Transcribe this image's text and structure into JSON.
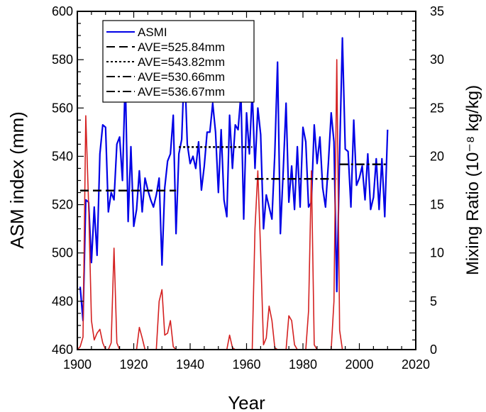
{
  "chart_data": {
    "type": "line",
    "xlabel": "Year",
    "ylabel_left": "ASM index (mm)",
    "ylabel_right": "Mixing Ratio (10⁻⁸ kg/kg)",
    "xlim": [
      1900,
      2020
    ],
    "ylim_left": [
      460,
      600
    ],
    "ylim_right": [
      0,
      35
    ],
    "x_ticks": [
      1900,
      1920,
      1940,
      1960,
      1980,
      2000,
      2020
    ],
    "y_left_ticks": [
      460,
      480,
      500,
      520,
      540,
      560,
      580,
      600
    ],
    "y_right_ticks": [
      0,
      5,
      10,
      15,
      20,
      25,
      30,
      35
    ],
    "grid": false,
    "legend_placement": "top-left",
    "legend": [
      {
        "label": "ASMI",
        "style": "solid",
        "color": "#0000e6"
      },
      {
        "label": "AVE=525.84mm",
        "style": "dashed",
        "color": "#000000"
      },
      {
        "label": "AVE=543.82mm",
        "style": "dotted",
        "color": "#000000"
      },
      {
        "label": "AVE=530.66mm",
        "style": "dashdot",
        "color": "#000000"
      },
      {
        "label": "AVE=536.67mm",
        "style": "dashdot",
        "color": "#000000"
      }
    ],
    "series": [
      {
        "name": "ASMI",
        "axis": "left",
        "color": "#0000e6",
        "x": [
          1901,
          1902,
          1903,
          1904,
          1905,
          1906,
          1907,
          1908,
          1909,
          1910,
          1911,
          1912,
          1913,
          1914,
          1915,
          1916,
          1917,
          1918,
          1919,
          1920,
          1921,
          1922,
          1923,
          1924,
          1925,
          1926,
          1927,
          1928,
          1929,
          1930,
          1931,
          1932,
          1933,
          1934,
          1935,
          1936,
          1937,
          1938,
          1939,
          1940,
          1941,
          1942,
          1943,
          1944,
          1945,
          1946,
          1947,
          1948,
          1949,
          1950,
          1951,
          1952,
          1953,
          1954,
          1955,
          1956,
          1957,
          1958,
          1959,
          1960,
          1961,
          1962,
          1963,
          1964,
          1965,
          1966,
          1967,
          1968,
          1969,
          1970,
          1971,
          1972,
          1973,
          1974,
          1975,
          1976,
          1977,
          1978,
          1979,
          1980,
          1981,
          1982,
          1983,
          1984,
          1985,
          1986,
          1987,
          1988,
          1989,
          1990,
          1991,
          1992,
          1993,
          1994,
          1995,
          1996,
          1997,
          1998,
          1999,
          2000,
          2001,
          2002,
          2003,
          2004,
          2005,
          2006,
          2007,
          2008,
          2009,
          2010
        ],
        "values": [
          486,
          472,
          522,
          521,
          496,
          519,
          499,
          541,
          553,
          552,
          517,
          525,
          522,
          545,
          548,
          530,
          573,
          513,
          544,
          511,
          518,
          534,
          517,
          531,
          526,
          522,
          519,
          524,
          531,
          495,
          527,
          538,
          541,
          557,
          508,
          541,
          547,
          579,
          545,
          537,
          540,
          535,
          546,
          526,
          536,
          550,
          550,
          562,
          550,
          525,
          551,
          522,
          515,
          557,
          535,
          553,
          551,
          566,
          514,
          558,
          541,
          567,
          535,
          560,
          549,
          510,
          524,
          519,
          514,
          541,
          579,
          508,
          534,
          562,
          521,
          536,
          518,
          544,
          519,
          552,
          546,
          519,
          521,
          553,
          537,
          548,
          527,
          519,
          537,
          558,
          546,
          484,
          541,
          589,
          543,
          542,
          519,
          555,
          528,
          531,
          536,
          522,
          541,
          518,
          523,
          539,
          518,
          539,
          515,
          551
        ]
      },
      {
        "name": "",
        "axis": "right",
        "color": "#d42020",
        "x": [
          1900,
          1901,
          1902,
          1903,
          1904,
          1905,
          1906,
          1907,
          1908,
          1909,
          1910,
          1911,
          1912,
          1913,
          1914,
          1915,
          1916,
          1917,
          1918,
          1919,
          1920,
          1921,
          1922,
          1923,
          1924,
          1925,
          1926,
          1927,
          1928,
          1929,
          1930,
          1931,
          1932,
          1933,
          1934,
          1935,
          1936,
          1937,
          1938,
          1939,
          1940,
          1941,
          1942,
          1943,
          1944,
          1945,
          1946,
          1947,
          1948,
          1949,
          1950,
          1951,
          1952,
          1953,
          1954,
          1955,
          1956,
          1957,
          1958,
          1959,
          1960,
          1961,
          1962,
          1963,
          1964,
          1965,
          1966,
          1967,
          1968,
          1969,
          1970,
          1971,
          1972,
          1973,
          1974,
          1975,
          1976,
          1977,
          1978,
          1979,
          1980,
          1981,
          1982,
          1983,
          1984,
          1985,
          1986,
          1987,
          1988,
          1989,
          1990,
          1991,
          1992,
          1993,
          1994,
          1995,
          1996,
          1997,
          1998,
          1999,
          2000,
          2001,
          2002,
          2003,
          2004,
          2005,
          2006,
          2007,
          2008,
          2009,
          2010
        ],
        "values": [
          0,
          0.3,
          1.3,
          24.2,
          15,
          3,
          1,
          1.7,
          2.1,
          0.7,
          0,
          0,
          0.7,
          10.5,
          0.7,
          0,
          0,
          0,
          0,
          0,
          0,
          0,
          2.3,
          1.2,
          0,
          0,
          0,
          0,
          0,
          5,
          6.2,
          1.5,
          1.7,
          3,
          0.3,
          0,
          0,
          0,
          0,
          0,
          0,
          0,
          0,
          0,
          0,
          0,
          0,
          0,
          0,
          0,
          0,
          0,
          0,
          0,
          1.5,
          0.2,
          0,
          0,
          0,
          0,
          0,
          0,
          0,
          12.5,
          18.5,
          10,
          0.5,
          1.2,
          4.5,
          3,
          0.2,
          0,
          0,
          0,
          0,
          3.5,
          3,
          0.5,
          0,
          0,
          0,
          0,
          4,
          18.5,
          0.5,
          0,
          0,
          0,
          0,
          0,
          0,
          5,
          30,
          2,
          0,
          0,
          0,
          0,
          0,
          0,
          0,
          0,
          0,
          0,
          0,
          0,
          0,
          0,
          0,
          0,
          0
        ]
      },
      {
        "name": "AVE=525.84mm",
        "axis": "left",
        "style": "dashed",
        "x": [
          1901,
          1935
        ],
        "values": [
          525.84,
          525.84
        ]
      },
      {
        "name": "AVE=543.82mm",
        "axis": "left",
        "style": "dotted",
        "x": [
          1936,
          1962
        ],
        "values": [
          543.82,
          543.82
        ]
      },
      {
        "name": "AVE=530.66mm",
        "axis": "left",
        "style": "dashdot",
        "x": [
          1963,
          1992
        ],
        "values": [
          530.66,
          530.66
        ]
      },
      {
        "name": "AVE=536.67mm",
        "axis": "left",
        "style": "dashdot",
        "x": [
          1993,
          2010
        ],
        "values": [
          536.67,
          536.67
        ]
      }
    ]
  }
}
